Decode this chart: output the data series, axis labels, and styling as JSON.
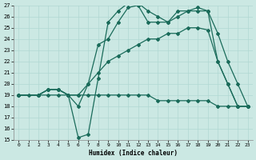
{
  "xlabel": "Humidex (Indice chaleur)",
  "xlim": [
    -0.5,
    23.5
  ],
  "ylim": [
    15,
    27
  ],
  "yticks": [
    15,
    16,
    17,
    18,
    19,
    20,
    21,
    22,
    23,
    24,
    25,
    26,
    27
  ],
  "xticks": [
    0,
    1,
    2,
    3,
    4,
    5,
    6,
    7,
    8,
    9,
    10,
    11,
    12,
    13,
    14,
    15,
    16,
    17,
    18,
    19,
    20,
    21,
    22,
    23
  ],
  "bg_color": "#cbe8e3",
  "line_color": "#1a6b5a",
  "grid_color": "#b0d8d2",
  "lines": [
    {
      "x": [
        0,
        1,
        2,
        3,
        4,
        5,
        6,
        7,
        8,
        9,
        10,
        11,
        12,
        13,
        14,
        15,
        16,
        17,
        18,
        19,
        20,
        21,
        22,
        23
      ],
      "y": [
        19.0,
        19.0,
        19.0,
        19.0,
        19.0,
        19.0,
        19.0,
        19.0,
        19.0,
        19.0,
        19.0,
        19.0,
        19.0,
        19.0,
        18.5,
        18.5,
        18.5,
        18.5,
        18.5,
        18.5,
        18.0,
        18.0,
        18.0,
        18.0
      ],
      "marker": "D",
      "markersize": 2,
      "linewidth": 0.9
    },
    {
      "x": [
        0,
        2,
        3,
        4,
        5,
        6,
        7,
        8,
        9,
        10,
        11,
        12,
        13,
        14,
        15,
        16,
        17,
        18,
        19,
        20,
        21,
        22,
        23
      ],
      "y": [
        19.0,
        19.0,
        19.5,
        19.5,
        19.0,
        15.2,
        15.5,
        20.5,
        25.5,
        26.5,
        27.2,
        27.2,
        26.5,
        26.0,
        25.5,
        26.0,
        26.5,
        26.5,
        26.5,
        22.0,
        20.0,
        18.0,
        18.0
      ],
      "marker": "D",
      "markersize": 2,
      "linewidth": 0.9
    },
    {
      "x": [
        0,
        2,
        3,
        4,
        5,
        6,
        7,
        8,
        9,
        10,
        11,
        12,
        13,
        14,
        15,
        16,
        17,
        18,
        19,
        20,
        21,
        22,
        23
      ],
      "y": [
        19.0,
        19.0,
        19.5,
        19.5,
        19.0,
        19.0,
        20.0,
        23.5,
        24.0,
        25.5,
        26.8,
        27.0,
        25.5,
        25.5,
        25.5,
        26.5,
        26.5,
        26.8,
        26.5,
        24.5,
        22.0,
        20.0,
        18.0
      ],
      "marker": "D",
      "markersize": 2,
      "linewidth": 0.9
    },
    {
      "x": [
        0,
        2,
        3,
        4,
        5,
        6,
        7,
        8,
        9,
        10,
        11,
        12,
        13,
        14,
        15,
        16,
        17,
        18,
        19,
        20,
        21,
        22,
        23
      ],
      "y": [
        19.0,
        19.0,
        19.5,
        19.5,
        19.0,
        18.0,
        20.0,
        21.0,
        22.0,
        22.5,
        23.0,
        23.5,
        24.0,
        24.0,
        24.5,
        24.5,
        25.0,
        25.0,
        24.8,
        22.0,
        20.0,
        18.0,
        18.0
      ],
      "marker": "D",
      "markersize": 2,
      "linewidth": 0.9
    }
  ]
}
